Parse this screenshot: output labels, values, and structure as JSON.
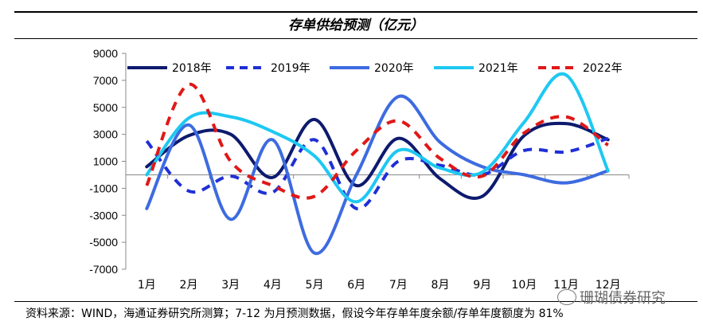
{
  "title": "存单供给预测（亿元）",
  "source_note": "资料来源：WIND，海通证券研究所测算；7-12 为月预测数据，假设今年存单年度余额/存单年度额度为 81%",
  "watermark": "珊瑚债券研究",
  "colors": {
    "s2018": "#0d1a6e",
    "s2019": "#1f2fd6",
    "s2020": "#3d6be0",
    "s2021": "#1ec8f2",
    "s2022": "#e01818"
  },
  "chart_data": {
    "type": "line",
    "title": "存单供给预测（亿元）",
    "categories": [
      "1月",
      "2月",
      "3月",
      "4月",
      "5月",
      "6月",
      "7月",
      "8月",
      "9月",
      "10月",
      "11月",
      "12月"
    ],
    "ylim": [
      -7000,
      9000
    ],
    "yticks": [
      "9000",
      "7000",
      "5000",
      "3000",
      "1000",
      "-1000",
      "-3000",
      "-5000",
      "-7000"
    ],
    "legend_position": "top",
    "series": [
      {
        "name": "2018年",
        "style": "solid",
        "color": "#0d1a6e",
        "values": [
          600,
          2900,
          3000,
          -200,
          4100,
          -800,
          2700,
          -300,
          -1600,
          2900,
          3800,
          2600
        ]
      },
      {
        "name": "2019年",
        "style": "dashed",
        "color": "#1f2fd6",
        "values": [
          2500,
          -1200,
          -100,
          -1300,
          2600,
          -2500,
          1000,
          700,
          0,
          1800,
          1700,
          2700
        ]
      },
      {
        "name": "2020年",
        "style": "solid",
        "color": "#3d6be0",
        "values": [
          -2500,
          3700,
          -3300,
          2600,
          -5800,
          0,
          5800,
          2400,
          600,
          0,
          -600,
          300
        ]
      },
      {
        "name": "2021年",
        "style": "solid",
        "color": "#1ec8f2",
        "values": [
          0,
          4200,
          4300,
          3200,
          1400,
          -2000,
          1800,
          500,
          200,
          3900,
          7400,
          300
        ]
      },
      {
        "name": "2022年",
        "style": "dashed",
        "color": "#e01818",
        "values": [
          -800,
          6700,
          1000,
          -800,
          -1600,
          1800,
          4000,
          1200,
          -100,
          3100,
          4300,
          2200
        ]
      }
    ]
  }
}
